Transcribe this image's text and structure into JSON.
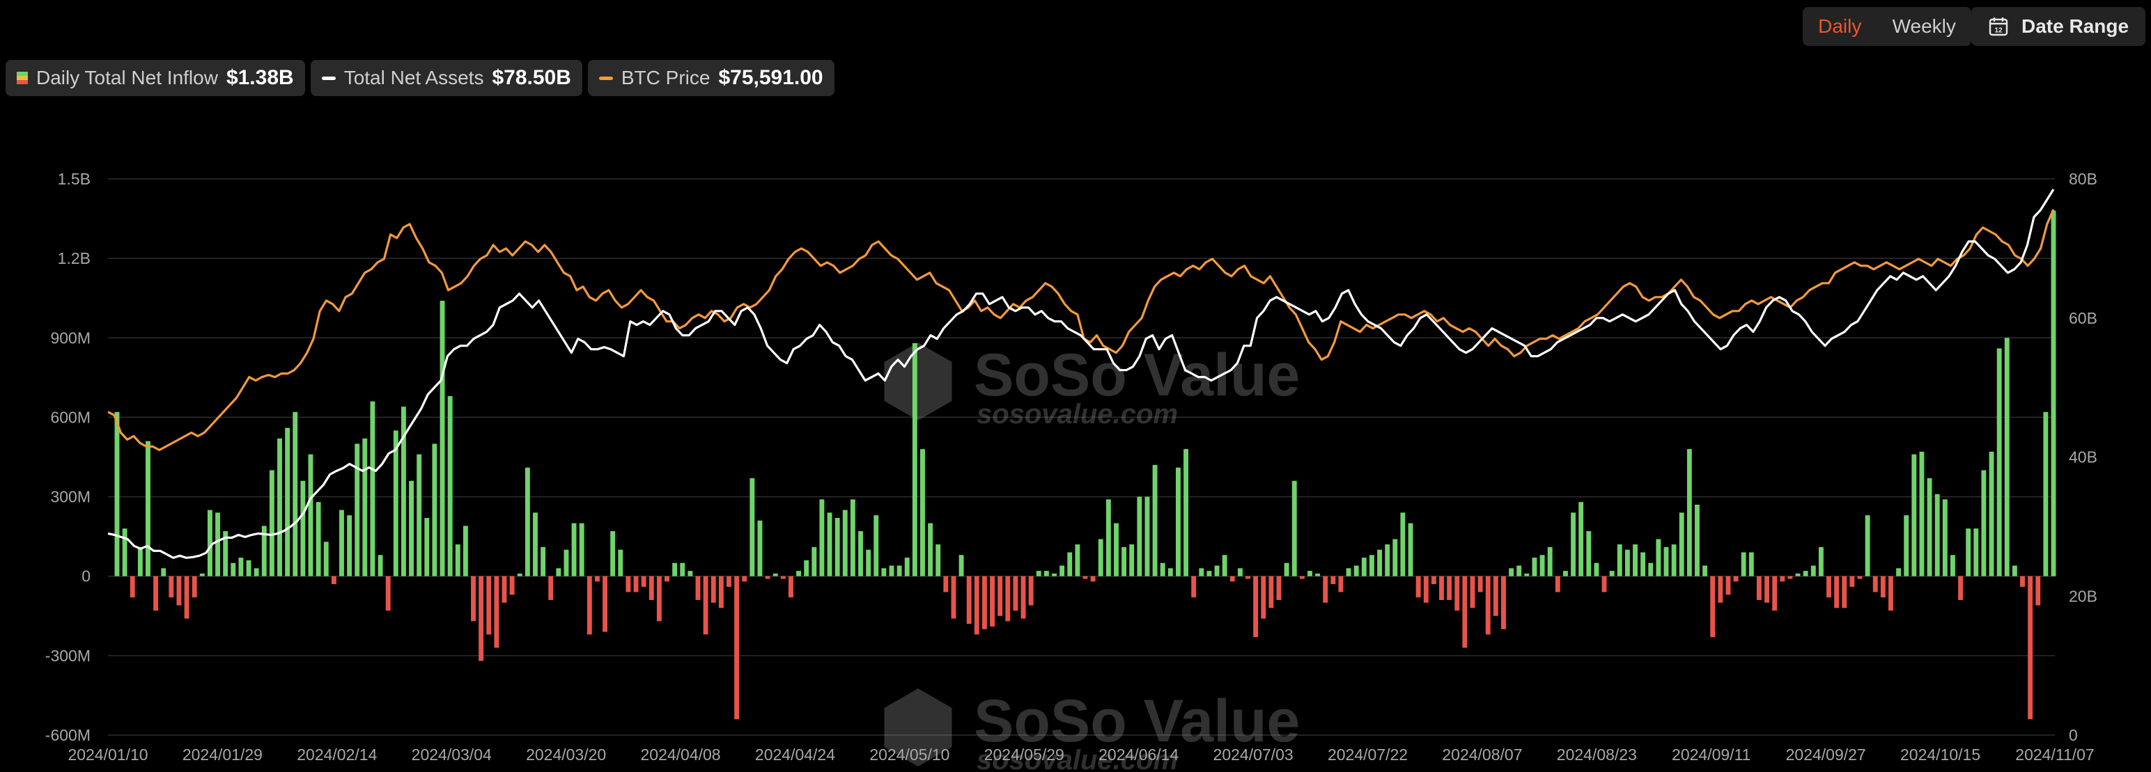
{
  "controls": {
    "daily_label": "Daily",
    "weekly_label": "Weekly",
    "date_range_label": "Date Range"
  },
  "legend": [
    {
      "label": "Daily Total Net Inflow",
      "value": "$1.38B"
    },
    {
      "label": "Total Net Assets",
      "value": "$78.50B"
    },
    {
      "label": "BTC Price",
      "value": "$75,591.00"
    }
  ],
  "watermark": {
    "brand": "SoSo Value",
    "url": "sosovalue.com"
  },
  "colors": {
    "positive_bar": "#6fd46a",
    "negative_bar": "#e8544a",
    "assets_line": "#ffffff",
    "btc_line": "#f49a3c",
    "accent": "#f0552b",
    "grid": "#2e2e2e"
  },
  "chart_data": {
    "type": "bar",
    "title": "",
    "x_tick_labels": [
      "2024/01/10",
      "2024/01/29",
      "2024/02/14",
      "2024/03/04",
      "2024/03/20",
      "2024/04/08",
      "2024/04/24",
      "2024/05/10",
      "2024/05/29",
      "2024/06/14",
      "2024/07/03",
      "2024/07/22",
      "2024/08/07",
      "2024/08/23",
      "2024/09/11",
      "2024/09/27",
      "2024/10/15",
      "2024/11/07"
    ],
    "y_left_tick_labels": [
      "1.5B",
      "1.2B",
      "900M",
      "600M",
      "300M",
      "0",
      "-300M",
      "-600M"
    ],
    "y_right_tick_labels": [
      "80B",
      "60B",
      "40B",
      "20B",
      "0"
    ],
    "y_left_lim": [
      -600,
      1500
    ],
    "y_right_lim": [
      0,
      80
    ],
    "left_units": "M USD",
    "right_units": "B USD",
    "grid": true,
    "legend_position": "top-left",
    "series": [
      {
        "name": "Daily Total Net Inflow",
        "type": "bar",
        "axis": "left",
        "values": [
          620,
          180,
          -80,
          110,
          510,
          -130,
          30,
          -80,
          -110,
          -160,
          -80,
          10,
          250,
          240,
          170,
          50,
          70,
          60,
          30,
          190,
          400,
          520,
          560,
          620,
          360,
          460,
          280,
          130,
          -30,
          250,
          230,
          500,
          520,
          660,
          80,
          -130,
          550,
          640,
          360,
          460,
          220,
          500,
          1040,
          680,
          120,
          190,
          -170,
          -320,
          -220,
          -270,
          -100,
          -70,
          10,
          410,
          240,
          110,
          -90,
          30,
          100,
          200,
          200,
          -220,
          -20,
          -210,
          170,
          100,
          -60,
          -60,
          -40,
          -90,
          -170,
          -20,
          50,
          50,
          20,
          -90,
          -220,
          -100,
          -120,
          -40,
          -540,
          -20,
          370,
          210,
          -10,
          10,
          -10,
          -80,
          20,
          60,
          110,
          290,
          240,
          220,
          250,
          290,
          170,
          100,
          230,
          30,
          40,
          40,
          70,
          880,
          480,
          200,
          120,
          -60,
          -160,
          80,
          -180,
          -220,
          -200,
          -190,
          -150,
          -170,
          -130,
          -160,
          -110,
          20,
          20,
          10,
          40,
          90,
          120,
          -10,
          -20,
          140,
          290,
          200,
          110,
          120,
          300,
          300,
          420,
          50,
          30,
          410,
          480,
          -80,
          30,
          20,
          40,
          80,
          -20,
          30,
          -10,
          -230,
          -160,
          -120,
          -90,
          50,
          360,
          -10,
          20,
          10,
          -100,
          -30,
          -60,
          30,
          40,
          70,
          80,
          100,
          120,
          140,
          240,
          200,
          -80,
          -100,
          -30,
          -90,
          -90,
          -130,
          -270,
          -120,
          -60,
          -220,
          -150,
          -200,
          30,
          40,
          10,
          70,
          80,
          110,
          -60,
          20,
          240,
          280,
          170,
          50,
          -60,
          20,
          120,
          100,
          120,
          90,
          50,
          140,
          110,
          120,
          240,
          480,
          270,
          40,
          -230,
          -100,
          -70,
          -20,
          90,
          90,
          -90,
          -100,
          -130,
          -20,
          -10,
          10,
          20,
          40,
          110,
          -80,
          -120,
          -120,
          -40,
          -10,
          230,
          -60,
          -80,
          -130,
          30,
          230,
          460,
          470,
          370,
          310,
          290,
          80,
          -90,
          180,
          180,
          400,
          470,
          860,
          900,
          40,
          -40,
          -540,
          -110,
          620,
          1380
        ]
      },
      {
        "name": "Total Net Assets",
        "type": "line",
        "axis": "right",
        "values": [
          29.0,
          28.8,
          28.5,
          28.2,
          27.2,
          26.8,
          27.2,
          26.5,
          26.5,
          26.0,
          25.5,
          25.8,
          25.5,
          25.6,
          25.8,
          26.2,
          27.5,
          28.0,
          28.4,
          28.4,
          28.8,
          28.5,
          28.8,
          29.0,
          28.9,
          28.8,
          29.0,
          29.4,
          30.0,
          30.8,
          32.0,
          34.0,
          35.0,
          36.0,
          37.5,
          38.0,
          38.4,
          39.0,
          38.5,
          38.0,
          38.5,
          38.0,
          39.0,
          40.5,
          41.0,
          42.5,
          44.0,
          45.5,
          47.0,
          49.0,
          50.0,
          51.0,
          54.5,
          55.5,
          56.0,
          56.0,
          57.0,
          57.5,
          58.0,
          59.0,
          61.5,
          62.0,
          62.5,
          63.5,
          62.5,
          61.5,
          62.5,
          61.0,
          59.5,
          58.0,
          56.5,
          55.0,
          57.0,
          56.5,
          55.5,
          55.5,
          55.8,
          55.5,
          55.0,
          54.5,
          59.5,
          59.0,
          59.5,
          59.0,
          60.0,
          61.0,
          60.5,
          58.5,
          57.5,
          57.5,
          58.5,
          59.0,
          59.5,
          61.0,
          61.0,
          60.0,
          59.0,
          61.0,
          61.5,
          60.5,
          58.5,
          56.0,
          55.0,
          54.0,
          53.5,
          55.5,
          56.0,
          57.0,
          57.5,
          59.0,
          58.0,
          56.5,
          56.0,
          54.5,
          54.0,
          52.5,
          51.0,
          51.5,
          52.0,
          51.0,
          53.0,
          54.0,
          53.0,
          54.5,
          55.5,
          56.0,
          57.5,
          57.0,
          58.5,
          59.5,
          60.5,
          61.0,
          62.0,
          63.5,
          63.5,
          62.0,
          62.5,
          63.0,
          61.5,
          61.0,
          61.5,
          61.5,
          60.5,
          61.0,
          60.0,
          59.5,
          59.5,
          58.5,
          58.0,
          57.5,
          56.5,
          55.5,
          55.5,
          55.5,
          53.5,
          52.5,
          52.5,
          53.0,
          54.5,
          57.0,
          57.5,
          55.5,
          57.0,
          57.5,
          55.0,
          52.5,
          52.0,
          51.5,
          51.5,
          51.0,
          51.5,
          52.0,
          52.5,
          53.5,
          56.0,
          56.0,
          60.0,
          61.0,
          62.5,
          63.0,
          62.5,
          62.0,
          61.5,
          61.0,
          60.5,
          61.0,
          59.5,
          60.0,
          61.5,
          63.5,
          64.0,
          62.0,
          60.5,
          59.5,
          59.0,
          58.5,
          57.5,
          56.5,
          56.0,
          57.5,
          58.5,
          60.0,
          60.5,
          59.5,
          58.5,
          57.5,
          56.5,
          55.5,
          55.0,
          55.5,
          56.5,
          57.5,
          58.5,
          58.0,
          57.5,
          57.0,
          56.5,
          56.0,
          54.5,
          54.5,
          55.0,
          55.5,
          56.5,
          57.0,
          57.5,
          58.0,
          58.5,
          59.0,
          60.0,
          60.0,
          59.5,
          60.0,
          60.5,
          60.0,
          59.5,
          60.0,
          60.5,
          61.5,
          62.5,
          63.5,
          64.0,
          62.0,
          61.0,
          59.5,
          58.5,
          57.5,
          56.5,
          55.5,
          56.0,
          57.5,
          58.5,
          59.0,
          58.0,
          59.5,
          61.5,
          62.5,
          63.0,
          62.5,
          61.0,
          60.5,
          59.5,
          58.0,
          57.0,
          56.0,
          57.0,
          57.5,
          58.0,
          59.0,
          59.5,
          61.0,
          62.5,
          64.0,
          65.0,
          66.0,
          65.5,
          66.5,
          66.0,
          65.5,
          66.0,
          65.0,
          64.0,
          65.0,
          66.0,
          67.5,
          69.5,
          71.0,
          71.0,
          70.0,
          69.0,
          68.5,
          67.5,
          66.5,
          67.0,
          68.0,
          70.5,
          74.5,
          75.5,
          77.0,
          78.5
        ]
      },
      {
        "name": "BTC Price",
        "type": "line",
        "axis": "right",
        "values": [
          46.5,
          46.0,
          43.5,
          42.5,
          43.0,
          42.0,
          41.5,
          41.5,
          41.0,
          41.5,
          42.0,
          42.5,
          43.0,
          43.5,
          43.0,
          43.5,
          44.5,
          45.5,
          46.5,
          47.5,
          48.5,
          50.0,
          51.5,
          51.0,
          51.5,
          51.8,
          51.5,
          52.0,
          52.0,
          52.5,
          53.5,
          55.0,
          57.0,
          61.0,
          62.5,
          62.0,
          61.0,
          63.0,
          63.5,
          65.0,
          66.5,
          67.0,
          68.0,
          68.5,
          72.0,
          71.5,
          73.0,
          73.5,
          71.5,
          70.0,
          68.0,
          67.5,
          66.5,
          64.0,
          64.5,
          65.0,
          66.0,
          67.5,
          68.5,
          69.0,
          70.5,
          69.5,
          70.0,
          69.0,
          70.0,
          71.0,
          70.5,
          69.5,
          70.5,
          69.5,
          68.0,
          66.5,
          66.0,
          64.0,
          64.5,
          63.0,
          62.5,
          63.5,
          64.0,
          62.5,
          61.5,
          62.0,
          63.0,
          64.0,
          63.0,
          62.5,
          61.0,
          59.5,
          59.5,
          58.5,
          59.0,
          60.0,
          60.5,
          60.0,
          61.0,
          60.5,
          59.5,
          60.0,
          61.5,
          62.0,
          61.5,
          62.0,
          63.0,
          64.0,
          66.0,
          67.0,
          68.5,
          69.5,
          70.0,
          69.5,
          68.5,
          67.5,
          68.0,
          67.5,
          66.5,
          67.0,
          67.5,
          68.5,
          69.0,
          70.5,
          71.0,
          70.0,
          69.0,
          68.5,
          67.5,
          66.5,
          65.5,
          66.0,
          66.5,
          65.0,
          64.5,
          64.0,
          62.5,
          61.0,
          61.5,
          62.5,
          61.0,
          61.5,
          60.5,
          60.0,
          61.0,
          62.0,
          61.5,
          62.5,
          63.0,
          64.0,
          65.0,
          64.5,
          63.5,
          62.0,
          61.0,
          60.5,
          57.0,
          56.5,
          57.5,
          56.0,
          55.5,
          55.0,
          56.0,
          58.0,
          59.0,
          60.0,
          62.5,
          64.5,
          65.5,
          66.0,
          66.5,
          66.0,
          67.0,
          67.5,
          67.0,
          68.0,
          68.5,
          67.5,
          66.5,
          66.0,
          67.0,
          67.5,
          66.0,
          65.5,
          65.0,
          66.0,
          64.5,
          63.0,
          61.5,
          60.5,
          58.5,
          56.5,
          55.5,
          54.0,
          54.5,
          56.5,
          59.5,
          59.0,
          58.5,
          58.0,
          59.0,
          58.5,
          59.0,
          59.5,
          60.0,
          60.5,
          60.5,
          60.0,
          60.5,
          61.0,
          60.5,
          59.5,
          60.0,
          59.0,
          58.5,
          58.0,
          58.5,
          58.0,
          57.0,
          56.0,
          57.0,
          56.0,
          55.5,
          54.5,
          55.0,
          56.0,
          56.5,
          57.0,
          57.0,
          57.5,
          57.0,
          57.5,
          58.0,
          58.5,
          59.5,
          60.0,
          60.5,
          61.5,
          62.5,
          63.5,
          64.5,
          65.0,
          64.5,
          63.0,
          62.5,
          63.0,
          63.0,
          63.5,
          64.5,
          65.5,
          64.5,
          63.0,
          62.5,
          61.5,
          60.5,
          60.0,
          60.5,
          61.0,
          61.0,
          62.0,
          62.5,
          62.0,
          62.5,
          63.0,
          62.5,
          62.0,
          61.5,
          62.5,
          63.0,
          64.0,
          64.5,
          65.0,
          65.0,
          66.5,
          67.0,
          67.5,
          68.0,
          67.5,
          67.5,
          67.0,
          67.5,
          68.0,
          67.5,
          67.0,
          67.5,
          68.0,
          68.5,
          68.0,
          67.5,
          68.5,
          68.0,
          67.5,
          68.5,
          69.0,
          70.0,
          72.0,
          73.0,
          72.5,
          72.0,
          71.0,
          70.5,
          69.0,
          68.5,
          67.5,
          68.5,
          70.0,
          73.5,
          75.6
        ]
      }
    ]
  }
}
